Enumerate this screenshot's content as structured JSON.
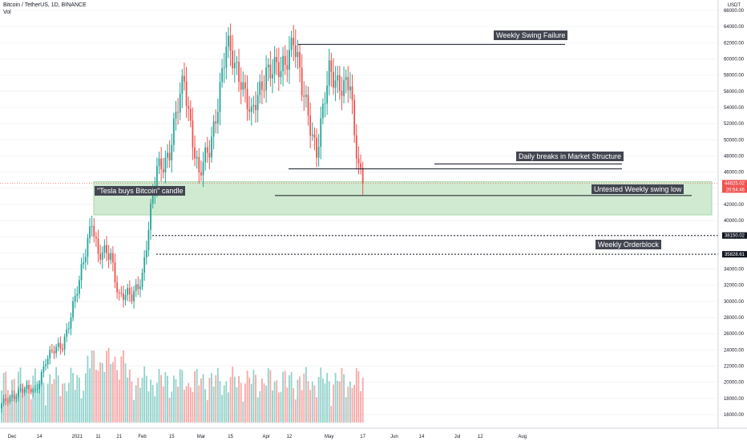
{
  "header": {
    "symbol": "Bitcoin / TetherUS, 1D, BINANCE",
    "volume_label": "Vol"
  },
  "price_axis": {
    "unit": "USDT",
    "ticks": [
      "66000.00",
      "64000.00",
      "62000.00",
      "60000.00",
      "58000.00",
      "56000.00",
      "54000.00",
      "52000.00",
      "50000.00",
      "48000.00",
      "46000.00",
      "44000.00",
      "42000.00",
      "40000.00",
      "38000.00",
      "36000.00",
      "34000.00",
      "32000.00",
      "30000.00",
      "28000.00",
      "26000.00",
      "24000.00",
      "22000.00",
      "20000.00",
      "18000.00",
      "16000.00"
    ],
    "current_price": "44625.02",
    "countdown": "20:54:46",
    "level_1": "38150.02",
    "level_2": "35828.61",
    "accent_up": "#26a69a",
    "accent_down": "#ef5350"
  },
  "time_axis": {
    "ticks": [
      "Dec",
      "14",
      "2021",
      "11",
      "21",
      "Feb",
      "15",
      "Mar",
      "15",
      "Apr",
      "12",
      "May",
      "17",
      "Jun",
      "14",
      "Jul",
      "12",
      "Aug"
    ]
  },
  "annotations": {
    "weekly_swing_failure": "Weekly Swing Failure",
    "daily_breaks": "Daily breaks in Market Structure",
    "tesla_candle": "\"Tesla buys Bitcoin\" candle",
    "untested_swing_low": "Untested Weekly swing low",
    "weekly_orderblock": "Weekly Orderblock",
    "zone_color": "#c8e6c9"
  },
  "chart_data": {
    "type": "candlestick",
    "title": "Bitcoin / TetherUS, 1D, BINANCE",
    "y_unit": "USDT",
    "ylim": [
      15000,
      67000
    ],
    "current_price": 44625.02,
    "levels": {
      "weekly_swing_failure": 61800,
      "daily_structure_break_1": 47000,
      "daily_structure_break_2": 46400,
      "untested_weekly_swing_low": 43100,
      "orderblock_high": 38150.02,
      "orderblock_low": 35828.61,
      "tesla_zone": [
        40700,
        44800
      ]
    },
    "close_series": [
      {
        "date": "2020-11-26",
        "close": 17100
      },
      {
        "date": "2020-12-05",
        "close": 19150
      },
      {
        "date": "2020-12-12",
        "close": 18800
      },
      {
        "date": "2020-12-17",
        "close": 22800
      },
      {
        "date": "2020-12-25",
        "close": 24700
      },
      {
        "date": "2021-01-02",
        "close": 32100
      },
      {
        "date": "2021-01-08",
        "close": 40600
      },
      {
        "date": "2021-01-11",
        "close": 35500
      },
      {
        "date": "2021-01-17",
        "close": 35800
      },
      {
        "date": "2021-01-21",
        "close": 30800
      },
      {
        "date": "2021-01-27",
        "close": 30400
      },
      {
        "date": "2021-02-01",
        "close": 33500
      },
      {
        "date": "2021-02-08",
        "close": 46200
      },
      {
        "date": "2021-02-14",
        "close": 48700
      },
      {
        "date": "2021-02-21",
        "close": 57500
      },
      {
        "date": "2021-02-28",
        "close": 45200
      },
      {
        "date": "2021-03-05",
        "close": 48900
      },
      {
        "date": "2021-03-13",
        "close": 61100
      },
      {
        "date": "2021-03-20",
        "close": 58100
      },
      {
        "date": "2021-03-25",
        "close": 52300
      },
      {
        "date": "2021-04-01",
        "close": 59100
      },
      {
        "date": "2021-04-08",
        "close": 58000
      },
      {
        "date": "2021-04-14",
        "close": 63200
      },
      {
        "date": "2021-04-18",
        "close": 55800
      },
      {
        "date": "2021-04-25",
        "close": 49000
      },
      {
        "date": "2021-05-01",
        "close": 57800
      },
      {
        "date": "2021-05-07",
        "close": 57300
      },
      {
        "date": "2021-05-11",
        "close": 56500
      },
      {
        "date": "2021-05-13",
        "close": 49600
      },
      {
        "date": "2021-05-17",
        "close": 44600
      }
    ],
    "volume_note": "daily volume histogram shown under price pane"
  }
}
